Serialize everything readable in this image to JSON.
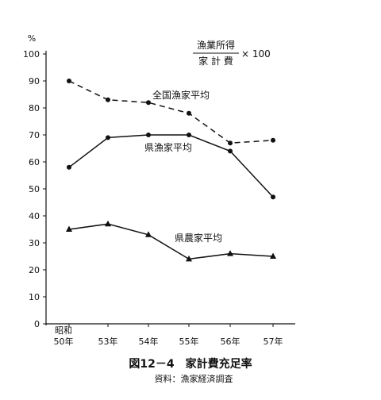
{
  "chart_data": {
    "type": "line",
    "y_unit": "%",
    "ylim": [
      0,
      100
    ],
    "y_ticks": [
      "0",
      "10",
      "20",
      "30",
      "40",
      "50",
      "60",
      "70",
      "80",
      "90",
      "100"
    ],
    "x_tick_top": "昭和",
    "categories": [
      "50年",
      "53年",
      "54年",
      "55年",
      "56年",
      "57年"
    ],
    "formula": {
      "numerator": "漁業所得",
      "denominator": "家 計 費",
      "multiplier": "× 100"
    },
    "series": [
      {
        "name": "全国漁家平均",
        "line": "dashed",
        "marker": "circle",
        "values": [
          90,
          83,
          82,
          78,
          67,
          68
        ]
      },
      {
        "name": "県漁家平均",
        "line": "solid",
        "marker": "circle",
        "values": [
          58,
          69,
          70,
          70,
          64,
          47
        ]
      },
      {
        "name": "県農家平均",
        "line": "solid",
        "marker": "triangle",
        "values": [
          35,
          37,
          33,
          24,
          26,
          25
        ]
      }
    ],
    "title": "図12－4　家計費充足率",
    "source": "資料：漁家経済調査"
  }
}
